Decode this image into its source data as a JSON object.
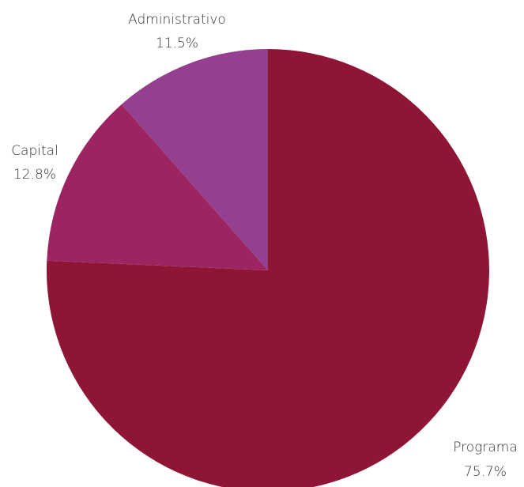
{
  "chart_data": {
    "type": "pie",
    "title": "",
    "start_angle": "12 o'clock",
    "direction": "clockwise",
    "slices": [
      {
        "label": "Programa",
        "value": 75.7,
        "value_label": "75.7%",
        "color": "#8f1537"
      },
      {
        "label": "Capital",
        "value": 12.8,
        "value_label": "12.8%",
        "color": "#9c2461"
      },
      {
        "label": "Administrativo",
        "value": 11.5,
        "value_label": "11.5%",
        "color": "#94408e"
      }
    ]
  }
}
